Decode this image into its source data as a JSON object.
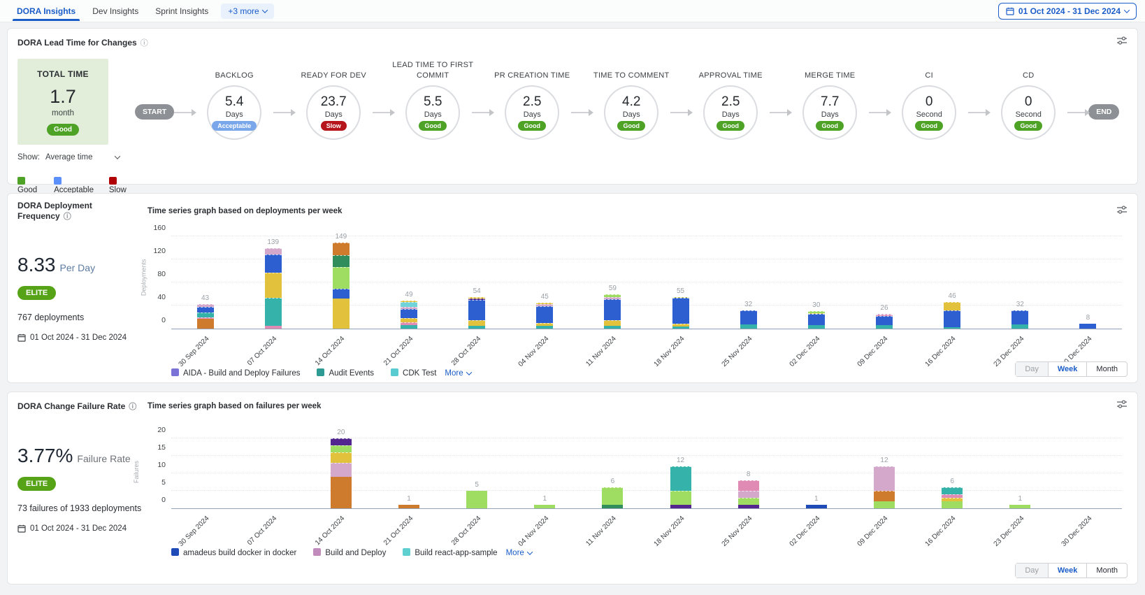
{
  "tabs": [
    {
      "label": "DORA Insights",
      "active": true
    },
    {
      "label": "Dev Insights",
      "active": false
    },
    {
      "label": "Sprint Insights",
      "active": false
    }
  ],
  "more_tab": "+3 more",
  "date_range": "01 Oct 2024 - 31 Dec 2024",
  "status_colors": {
    "Good": "#4ea327",
    "Acceptable": "#7aa7ea",
    "Slow": "#b6151c"
  },
  "lead_time": {
    "title": "DORA Lead Time for Changes",
    "total": {
      "label": "TOTAL TIME",
      "value": "1.7",
      "unit": "month",
      "status": "Good"
    },
    "show_label": "Show:",
    "show_value": "Average time",
    "start_label": "START",
    "end_label": "END",
    "stages": [
      {
        "name": "BACKLOG",
        "value": "5.4",
        "unit": "Days",
        "status": "Acceptable"
      },
      {
        "name": "READY FOR DEV",
        "value": "23.7",
        "unit": "Days",
        "status": "Slow"
      },
      {
        "name": "LEAD TIME TO FIRST COMMIT",
        "value": "5.5",
        "unit": "Days",
        "status": "Good"
      },
      {
        "name": "PR CREATION TIME",
        "value": "2.5",
        "unit": "Days",
        "status": "Good"
      },
      {
        "name": "TIME TO COMMENT",
        "value": "4.2",
        "unit": "Days",
        "status": "Good"
      },
      {
        "name": "APPROVAL TIME",
        "value": "2.5",
        "unit": "Days",
        "status": "Good"
      },
      {
        "name": "MERGE TIME",
        "value": "7.7",
        "unit": "Days",
        "status": "Good"
      },
      {
        "name": "CI",
        "value": "0",
        "unit": "Second",
        "status": "Good"
      },
      {
        "name": "CD",
        "value": "0",
        "unit": "Second",
        "status": "Good"
      }
    ],
    "legend": [
      {
        "label": "Good",
        "color": "#4ea327"
      },
      {
        "label": "Acceptable",
        "color": "#5b8ff9"
      },
      {
        "label": "Slow",
        "color": "#b00005"
      }
    ]
  },
  "deployment": {
    "title": "DORA Deployment Frequency",
    "chart_title": "Time series graph based on deployments per week",
    "rate": "8.33",
    "rate_unit": "Per Day",
    "tier": "ELITE",
    "count": "767 deployments",
    "date_range": "01 Oct 2024 - 31 Dec 2024",
    "legend": [
      {
        "label": "AIDA - Build and Deploy Failures",
        "color": "#7b72d8"
      },
      {
        "label": "Audit Events",
        "color": "#2d9a93"
      },
      {
        "label": "CDK Test",
        "color": "#58cbd0"
      }
    ],
    "more_label": "More"
  },
  "failure": {
    "title": "DORA Change Failure Rate",
    "chart_title": "Time series graph based on failures per week",
    "rate": "3.77%",
    "rate_unit": "Failure Rate",
    "tier": "ELITE",
    "count": "73 failures of 1933 deployments",
    "date_range": "01 Oct 2024 - 31 Dec 2024",
    "legend": [
      {
        "label": "amadeus build docker in docker",
        "color": "#1f4bb8"
      },
      {
        "label": "Build and Deploy",
        "color": "#c18bbb"
      },
      {
        "label": "Build react-app-sample",
        "color": "#5fcfcf"
      }
    ],
    "more_label": "More"
  },
  "time_toggle": {
    "options": [
      "Day",
      "Week",
      "Month"
    ],
    "selected": "Week"
  },
  "chart_colors": {
    "orange": "#ce7b2e",
    "pink": "#e08bb4",
    "teal": "#35b2aa",
    "yellow": "#e2c23d",
    "blue": "#2d5fd0",
    "plum": "#d3a8cb",
    "lgreen": "#9edd61",
    "dgreen": "#318d5c",
    "purple": "#53258f",
    "cyan": "#6fd3d9",
    "dblue": "#1f4bb8",
    "olive": "#b8c32f"
  },
  "chart_data": [
    {
      "type": "bar",
      "stacked": true,
      "title": "Time series graph based on deployments per week",
      "ylabel": "Deployments",
      "yticks": [
        0,
        40,
        80,
        120,
        160
      ],
      "ylim": [
        0,
        165
      ],
      "grid": true,
      "legend_position": "bottom",
      "categories": [
        "30 Sep 2024",
        "07 Oct 2024",
        "14 Oct 2024",
        "21 Oct 2024",
        "28 Oct 2024",
        "04 Nov 2024",
        "11 Nov 2024",
        "18 Nov 2024",
        "25 Nov 2024",
        "02 Dec 2024",
        "09 Dec 2024",
        "16 Dec 2024",
        "23 Dec 2024",
        "30 Dec 2024"
      ],
      "totals": [
        43,
        139,
        149,
        49,
        54,
        45,
        59,
        55,
        32,
        30,
        26,
        46,
        32,
        8
      ],
      "bars": [
        {
          "total": 43,
          "segments": [
            [
              "orange",
              17
            ],
            [
              "pink",
              2
            ],
            [
              "teal",
              9
            ],
            [
              "blue",
              10
            ],
            [
              "plum",
              5
            ]
          ]
        },
        {
          "total": 139,
          "segments": [
            [
              "pink",
              5
            ],
            [
              "teal",
              48
            ],
            [
              "yellow",
              44
            ],
            [
              "blue",
              32
            ],
            [
              "plum",
              10
            ]
          ]
        },
        {
          "total": 149,
          "segments": [
            [
              "yellow",
              52
            ],
            [
              "blue",
              17
            ],
            [
              "lgreen",
              38
            ],
            [
              "dgreen",
              20
            ],
            [
              "orange",
              22
            ]
          ]
        },
        {
          "total": 49,
          "segments": [
            [
              "teal",
              6
            ],
            [
              "pink",
              5
            ],
            [
              "yellow",
              7
            ],
            [
              "blue",
              16
            ],
            [
              "plum",
              4
            ],
            [
              "cyan",
              8
            ],
            [
              "yellow",
              3
            ]
          ]
        },
        {
          "total": 54,
          "segments": [
            [
              "teal",
              5
            ],
            [
              "yellow",
              9
            ],
            [
              "blue",
              36
            ],
            [
              "purple",
              2
            ],
            [
              "yellow",
              2
            ]
          ]
        },
        {
          "total": 45,
          "segments": [
            [
              "teal",
              5
            ],
            [
              "yellow",
              5
            ],
            [
              "blue",
              29
            ],
            [
              "plum",
              3
            ],
            [
              "yellow",
              3
            ]
          ]
        },
        {
          "total": 59,
          "segments": [
            [
              "teal",
              5
            ],
            [
              "yellow",
              9
            ],
            [
              "blue",
              37
            ],
            [
              "plum",
              4
            ],
            [
              "lgreen",
              4
            ]
          ]
        },
        {
          "total": 55,
          "segments": [
            [
              "teal",
              4
            ],
            [
              "yellow",
              4
            ],
            [
              "blue",
              45
            ],
            [
              "olive",
              2
            ]
          ]
        },
        {
          "total": 32,
          "segments": [
            [
              "teal",
              7
            ],
            [
              "blue",
              25
            ]
          ]
        },
        {
          "total": 30,
          "segments": [
            [
              "teal",
              6
            ],
            [
              "blue",
              19
            ],
            [
              "yellow",
              2
            ],
            [
              "lgreen",
              3
            ]
          ]
        },
        {
          "total": 26,
          "segments": [
            [
              "teal",
              6
            ],
            [
              "blue",
              16
            ],
            [
              "pink",
              2
            ],
            [
              "plum",
              2
            ]
          ]
        },
        {
          "total": 46,
          "segments": [
            [
              "teal",
              3
            ],
            [
              "blue",
              28
            ],
            [
              "yellow",
              15
            ]
          ]
        },
        {
          "total": 32,
          "segments": [
            [
              "teal",
              7
            ],
            [
              "blue",
              25
            ]
          ]
        },
        {
          "total": 8,
          "segments": [
            [
              "blue",
              8
            ]
          ]
        }
      ]
    },
    {
      "type": "bar",
      "stacked": true,
      "title": "Time series graph based on failures per week",
      "ylabel": "Failures",
      "yticks": [
        0,
        5,
        10,
        15,
        20
      ],
      "ylim": [
        0,
        21
      ],
      "grid": true,
      "legend_position": "bottom",
      "categories": [
        "30 Sep 2024",
        "07 Oct 2024",
        "14 Oct 2024",
        "21 Oct 2024",
        "28 Oct 2024",
        "04 Nov 2024",
        "11 Nov 2024",
        "18 Nov 2024",
        "25 Nov 2024",
        "02 Dec 2024",
        "09 Dec 2024",
        "16 Dec 2024",
        "23 Dec 2024",
        "30 Dec 2024"
      ],
      "totals": [
        0,
        0,
        20,
        1,
        5,
        1,
        6,
        12,
        8,
        1,
        12,
        6,
        1,
        0
      ],
      "bars": [
        {
          "total": 0,
          "segments": []
        },
        {
          "total": 0,
          "segments": []
        },
        {
          "total": 20,
          "segments": [
            [
              "orange",
              9
            ],
            [
              "plum",
              4
            ],
            [
              "yellow",
              3
            ],
            [
              "lgreen",
              2
            ],
            [
              "purple",
              2
            ]
          ]
        },
        {
          "total": 1,
          "segments": [
            [
              "orange",
              1
            ]
          ]
        },
        {
          "total": 5,
          "segments": [
            [
              "lgreen",
              5
            ]
          ]
        },
        {
          "total": 1,
          "segments": [
            [
              "lgreen",
              1
            ]
          ]
        },
        {
          "total": 6,
          "segments": [
            [
              "dgreen",
              1
            ],
            [
              "lgreen",
              5
            ]
          ]
        },
        {
          "total": 12,
          "segments": [
            [
              "purple",
              1
            ],
            [
              "lgreen",
              4
            ],
            [
              "teal",
              7
            ]
          ]
        },
        {
          "total": 8,
          "segments": [
            [
              "purple",
              1
            ],
            [
              "lgreen",
              2
            ],
            [
              "plum",
              2
            ],
            [
              "pink",
              3
            ]
          ]
        },
        {
          "total": 1,
          "segments": [
            [
              "dblue",
              1
            ]
          ]
        },
        {
          "total": 12,
          "segments": [
            [
              "lgreen",
              2
            ],
            [
              "orange",
              3
            ],
            [
              "plum",
              7
            ]
          ]
        },
        {
          "total": 6,
          "segments": [
            [
              "lgreen",
              2
            ],
            [
              "yellow",
              1
            ],
            [
              "pink",
              1
            ],
            [
              "teal",
              2
            ]
          ]
        },
        {
          "total": 1,
          "segments": [
            [
              "lgreen",
              1
            ]
          ]
        },
        {
          "total": 0,
          "segments": []
        }
      ]
    }
  ]
}
